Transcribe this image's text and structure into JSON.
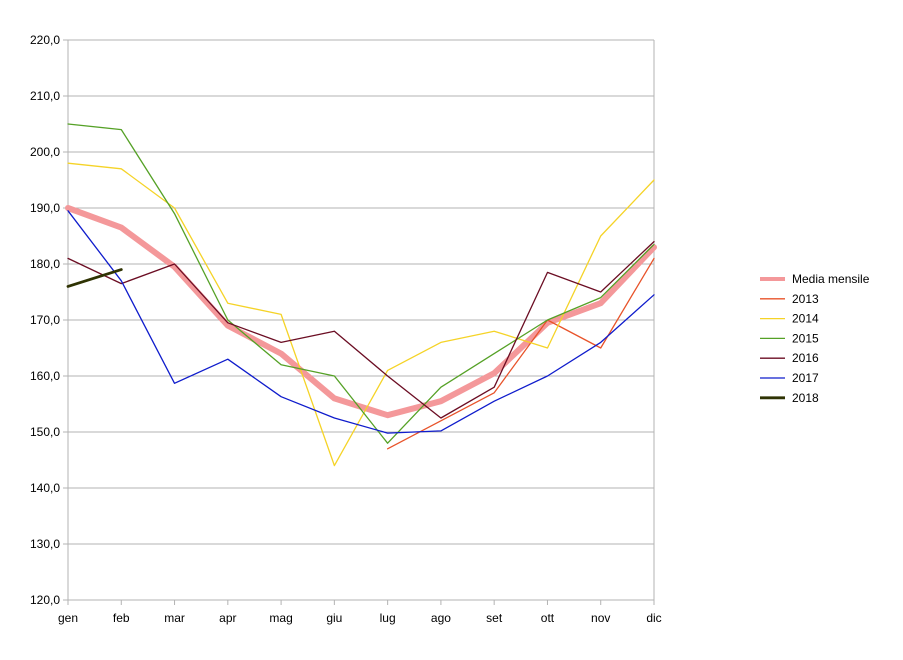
{
  "chart_data": {
    "type": "line",
    "title": "",
    "xlabel": "",
    "ylabel": "",
    "categories": [
      "gen",
      "feb",
      "mar",
      "apr",
      "mag",
      "giu",
      "lug",
      "ago",
      "set",
      "ott",
      "nov",
      "dic"
    ],
    "ylim": [
      120,
      220
    ],
    "yticks": [
      "120,0",
      "130,0",
      "140,0",
      "150,0",
      "160,0",
      "170,0",
      "180,0",
      "190,0",
      "200,0",
      "210,0",
      "220,0"
    ],
    "grid": "horizontal",
    "legend_position": "right",
    "series": [
      {
        "name": "Media mensile",
        "color": "#f4989a",
        "width": 6,
        "values": [
          190,
          186.5,
          179.5,
          169,
          164,
          156,
          153,
          155.5,
          160.5,
          169.5,
          173,
          183
        ]
      },
      {
        "name": "2013",
        "color": "#e8532a",
        "width": 1.3,
        "values": [
          null,
          null,
          null,
          null,
          null,
          null,
          147,
          152,
          157,
          170,
          165,
          181
        ]
      },
      {
        "name": "2014",
        "color": "#f5d327",
        "width": 1.3,
        "values": [
          198,
          197,
          190,
          173,
          171,
          144,
          161,
          166,
          168,
          165,
          185,
          195
        ]
      },
      {
        "name": "2015",
        "color": "#55a126",
        "width": 1.3,
        "values": [
          205,
          204,
          189,
          170,
          162,
          160,
          148,
          158,
          164,
          170,
          174,
          183.5
        ]
      },
      {
        "name": "2016",
        "color": "#6b0d23",
        "width": 1.3,
        "values": [
          181,
          176.5,
          180,
          169.5,
          166,
          168,
          160,
          152.5,
          158,
          178.5,
          175,
          184
        ]
      },
      {
        "name": "2017",
        "color": "#0f1ccc",
        "width": 1.3,
        "values": [
          189.5,
          177,
          158.7,
          163,
          156.3,
          152.5,
          149.8,
          150.2,
          155.5,
          160,
          166,
          174.5
        ]
      },
      {
        "name": "2018",
        "color": "#2f3303",
        "width": 2.8,
        "values": [
          176,
          179,
          null,
          null,
          null,
          null,
          null,
          null,
          null,
          null,
          null,
          null
        ]
      }
    ]
  }
}
